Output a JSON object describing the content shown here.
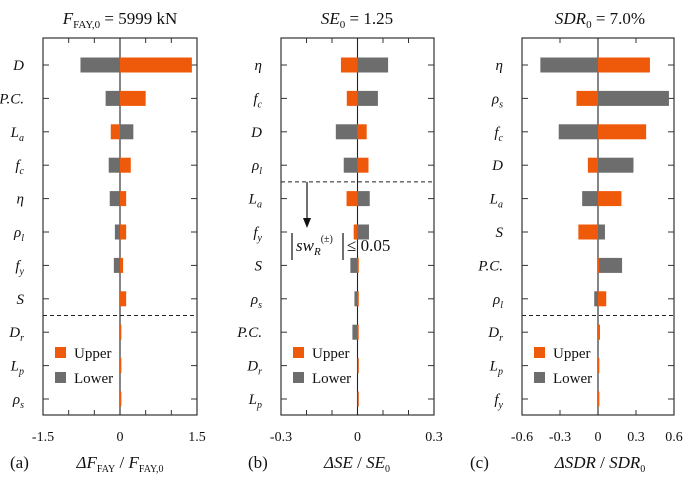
{
  "colors": {
    "upper": "#ee5a0a",
    "lower": "#6d6d6d",
    "axis": "#333333"
  },
  "legend": {
    "upper": "Upper",
    "lower": "Lower"
  },
  "chart_data": [
    {
      "type": "bar",
      "orientation": "horizontal-tornado",
      "panel_label": "(a)",
      "title": "F_FAY,0 = 5999 kN",
      "title_parts": {
        "main": "F",
        "sub": "FAY,0",
        "rest": " = 5999 kN"
      },
      "xlabel": "ΔF_FAY / F_FAY,0",
      "xlabel_parts": {
        "a": "ΔF",
        "a_sub": "FAY",
        "sep": " / ",
        "b": "F",
        "b_sub": "FAY,0"
      },
      "xlim": [
        -1.5,
        1.5
      ],
      "xticks": [
        -1.5,
        -1.0,
        -0.5,
        0,
        0.5,
        1.0,
        1.5
      ],
      "xtick_labels": [
        "-1.5",
        "",
        "",
        "0",
        "",
        "",
        "1.5"
      ],
      "categories": [
        {
          "main": "D",
          "sub": ""
        },
        {
          "main": "P.C.",
          "sub": ""
        },
        {
          "main": "L",
          "sub": "a"
        },
        {
          "main": "f",
          "sub": "c"
        },
        {
          "main": "η",
          "sub": ""
        },
        {
          "main": "ρ",
          "sub": "l"
        },
        {
          "main": "f",
          "sub": "y"
        },
        {
          "main": "S",
          "sub": ""
        },
        {
          "main": "D",
          "sub": "r"
        },
        {
          "main": "L",
          "sub": "p"
        },
        {
          "main": "ρ",
          "sub": "s"
        }
      ],
      "series": [
        {
          "name": "Upper",
          "values": [
            1.4,
            0.5,
            -0.18,
            0.21,
            0.12,
            0.12,
            0.06,
            0.12,
            0.02,
            0.0,
            0.0
          ]
        },
        {
          "name": "Lower",
          "values": [
            -0.77,
            -0.28,
            0.26,
            -0.22,
            -0.2,
            -0.1,
            -0.12,
            0.0,
            0.0,
            0.0,
            0.0
          ]
        }
      ],
      "threshold_after_index": 7,
      "legend_placement": "lower-left"
    },
    {
      "type": "bar",
      "orientation": "horizontal-tornado",
      "panel_label": "(b)",
      "title": "SE_0 = 1.25",
      "title_parts": {
        "main": "SE",
        "sub": "0",
        "rest": " = 1.25"
      },
      "xlabel": "ΔSE / SE_0",
      "xlabel_parts": {
        "a": "ΔSE",
        "a_sub": "",
        "sep": " / ",
        "b": "SE",
        "b_sub": "0"
      },
      "xlim": [
        -0.3,
        0.3
      ],
      "xticks": [
        -0.3,
        -0.2,
        -0.1,
        0,
        0.1,
        0.2,
        0.3
      ],
      "xtick_labels": [
        "-0.3",
        "",
        "",
        "0",
        "",
        "",
        "0.3"
      ],
      "categories": [
        {
          "main": "η",
          "sub": ""
        },
        {
          "main": "f",
          "sub": "c"
        },
        {
          "main": "D",
          "sub": ""
        },
        {
          "main": "ρ",
          "sub": "l"
        },
        {
          "main": "L",
          "sub": "a"
        },
        {
          "main": "f",
          "sub": "y"
        },
        {
          "main": "S",
          "sub": ""
        },
        {
          "main": "ρ",
          "sub": "s"
        },
        {
          "main": "P.C.",
          "sub": ""
        },
        {
          "main": "D",
          "sub": "r"
        },
        {
          "main": "L",
          "sub": "p"
        }
      ],
      "series": [
        {
          "name": "Upper",
          "values": [
            -0.065,
            -0.042,
            0.036,
            0.043,
            -0.043,
            -0.015,
            0.005,
            0.005,
            0.003,
            0.002,
            0.002
          ]
        },
        {
          "name": "Lower",
          "values": [
            0.12,
            0.08,
            -0.085,
            -0.054,
            0.048,
            0.045,
            -0.028,
            -0.012,
            -0.02,
            0.0,
            0.0
          ]
        }
      ],
      "threshold_after_index": 3,
      "annotation": {
        "text_sw": "sw",
        "text_sub": "R",
        "text_sup": "(±)",
        "text_rel": "≤ 0.05"
      },
      "legend_placement": "lower-left"
    },
    {
      "type": "bar",
      "orientation": "horizontal-tornado",
      "panel_label": "(c)",
      "title": "SDR_0 = 7.0%",
      "title_parts": {
        "main": "SDR",
        "sub": "0",
        "rest": " = 7.0%"
      },
      "xlabel": "ΔSDR / SDR_0",
      "xlabel_parts": {
        "a": "ΔSDR",
        "a_sub": "",
        "sep": " / ",
        "b": "SDR",
        "b_sub": "0"
      },
      "xlim": [
        -0.6,
        0.6
      ],
      "xticks": [
        -0.6,
        -0.3,
        0,
        0.3,
        0.6
      ],
      "xtick_labels": [
        "-0.6",
        "-0.3",
        "0",
        "0.3",
        "0.6"
      ],
      "categories": [
        {
          "main": "η",
          "sub": ""
        },
        {
          "main": "ρ",
          "sub": "s"
        },
        {
          "main": "f",
          "sub": "c"
        },
        {
          "main": "D",
          "sub": ""
        },
        {
          "main": "L",
          "sub": "a"
        },
        {
          "main": "S",
          "sub": ""
        },
        {
          "main": "P.C.",
          "sub": ""
        },
        {
          "main": "ρ",
          "sub": "l"
        },
        {
          "main": "D",
          "sub": "r"
        },
        {
          "main": "L",
          "sub": "p"
        },
        {
          "main": "f",
          "sub": "y"
        }
      ],
      "series": [
        {
          "name": "Upper",
          "values": [
            0.41,
            -0.17,
            0.38,
            -0.08,
            0.185,
            -0.155,
            0.005,
            0.065,
            0.0,
            0.003,
            0.003
          ]
        },
        {
          "name": "Lower",
          "values": [
            -0.455,
            0.56,
            -0.31,
            0.28,
            -0.125,
            0.055,
            0.19,
            -0.03,
            0.015,
            0.0,
            0.0
          ]
        }
      ],
      "threshold_after_index": 7,
      "legend_placement": "lower-left"
    }
  ]
}
